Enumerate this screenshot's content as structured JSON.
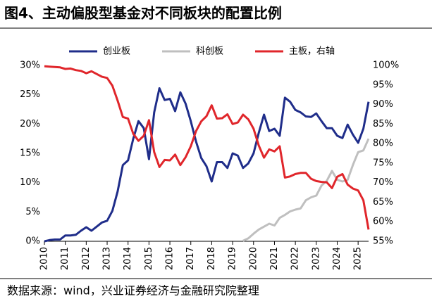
{
  "chart_data": {
    "type": "line",
    "title": "图4、主动偏股型基金对不同板块的配置比例",
    "source": "数据来源：wind，兴业证券经济与金融研究院整理",
    "x": [
      2010,
      2010.25,
      2010.5,
      2010.75,
      2011,
      2011.25,
      2011.5,
      2011.75,
      2012,
      2012.25,
      2012.5,
      2012.75,
      2013,
      2013.25,
      2013.5,
      2013.75,
      2014,
      2014.25,
      2014.5,
      2014.75,
      2015,
      2015.25,
      2015.5,
      2015.75,
      2016,
      2016.25,
      2016.5,
      2016.75,
      2017,
      2017.25,
      2017.5,
      2017.75,
      2018,
      2018.25,
      2018.5,
      2018.75,
      2019,
      2019.25,
      2019.5,
      2019.75,
      2020,
      2020.25,
      2020.5,
      2020.75,
      2021,
      2021.25,
      2021.5,
      2021.75,
      2022,
      2022.25,
      2022.5,
      2022.75,
      2023,
      2023.25,
      2023.5,
      2023.75,
      2024,
      2024.25,
      2024.5,
      2024.75,
      2025,
      2025.25,
      2025.5
    ],
    "series": [
      {
        "name": "创业板",
        "color": "#1f2d8a",
        "axis": "y",
        "values": [
          0,
          0.2,
          0.3,
          0.3,
          1,
          1,
          1.1,
          1.8,
          2.4,
          1.8,
          2.5,
          3.2,
          3.5,
          5.2,
          8.5,
          13,
          13.8,
          17.5,
          20.5,
          19.3,
          14,
          22,
          26.1,
          24.1,
          24.3,
          22.2,
          25.4,
          23.5,
          20.5,
          17,
          14.2,
          12.8,
          10.2,
          13.5,
          13.5,
          12.5,
          15,
          14.6,
          12.5,
          13.3,
          15,
          18.5,
          21.6,
          18.8,
          19.2,
          18,
          24.5,
          23.8,
          22.4,
          22,
          21.3,
          21.2,
          21.8,
          20.5,
          19.3,
          19.3,
          18,
          17.6,
          19.9,
          18.2,
          16.8,
          19.2,
          23.8
        ]
      },
      {
        "name": "科创板",
        "color": "#bfbfbf",
        "axis": "y",
        "values": [
          null,
          null,
          null,
          null,
          null,
          null,
          null,
          null,
          null,
          null,
          null,
          null,
          null,
          null,
          null,
          null,
          null,
          null,
          null,
          null,
          null,
          null,
          null,
          null,
          null,
          null,
          null,
          null,
          null,
          null,
          null,
          null,
          null,
          null,
          null,
          null,
          null,
          null,
          0.1,
          0.5,
          1.3,
          2,
          2.5,
          3,
          2.7,
          4,
          4.5,
          5.1,
          5.4,
          5.6,
          7,
          7.5,
          7.8,
          9.5,
          10.3,
          12,
          10.5,
          10.2,
          10.5,
          13,
          15.2,
          15.5,
          17.5
        ]
      },
      {
        "name": "主板，右轴",
        "color": "#e0262b",
        "axis": "y2",
        "values": [
          99.8,
          99.7,
          99.6,
          99.5,
          99.1,
          99.2,
          98.8,
          98.6,
          98,
          98.5,
          97.8,
          97.1,
          96.8,
          94.8,
          91,
          86.8,
          86.4,
          82.5,
          80.7,
          82,
          86,
          77.8,
          74,
          75.8,
          75.7,
          77.2,
          74.5,
          76.5,
          79.3,
          83.2,
          85.7,
          87,
          89.8,
          86.4,
          86.5,
          87.5,
          85,
          85.4,
          87.4,
          86.2,
          83.8,
          79.5,
          76.4,
          78.5,
          78,
          79.3,
          71.3,
          71.6,
          72.2,
          72.5,
          72.5,
          71,
          70.4,
          70.2,
          70.1,
          68.6,
          71.5,
          72.2,
          69.5,
          68.5,
          68,
          65.5,
          58
        ]
      }
    ],
    "xlim": [
      2010,
      2025.5
    ],
    "xticks": [
      2010,
      2011,
      2012,
      2013,
      2014,
      2015,
      2016,
      2017,
      2018,
      2019,
      2020,
      2021,
      2022,
      2023,
      2024,
      2025
    ],
    "ylim": [
      0,
      30
    ],
    "yticks": [
      {
        "value": 0,
        "label": "0%"
      },
      {
        "value": 5,
        "label": "5%"
      },
      {
        "value": 10,
        "label": "10%"
      },
      {
        "value": 15,
        "label": "15%"
      },
      {
        "value": 20,
        "label": "20%"
      },
      {
        "value": 25,
        "label": "25%"
      },
      {
        "value": 30,
        "label": "30%"
      }
    ],
    "y2lim": [
      55,
      100
    ],
    "y2ticks": [
      {
        "value": 55,
        "label": "55%"
      },
      {
        "value": 60,
        "label": "60%"
      },
      {
        "value": 65,
        "label": "65%"
      },
      {
        "value": 70,
        "label": "70%"
      },
      {
        "value": 75,
        "label": "75%"
      },
      {
        "value": 80,
        "label": "80%"
      },
      {
        "value": 85,
        "label": "85%"
      },
      {
        "value": 90,
        "label": "90%"
      },
      {
        "value": 95,
        "label": "95%"
      },
      {
        "value": 100,
        "label": "100%"
      }
    ],
    "legend": "top",
    "grid": false
  }
}
